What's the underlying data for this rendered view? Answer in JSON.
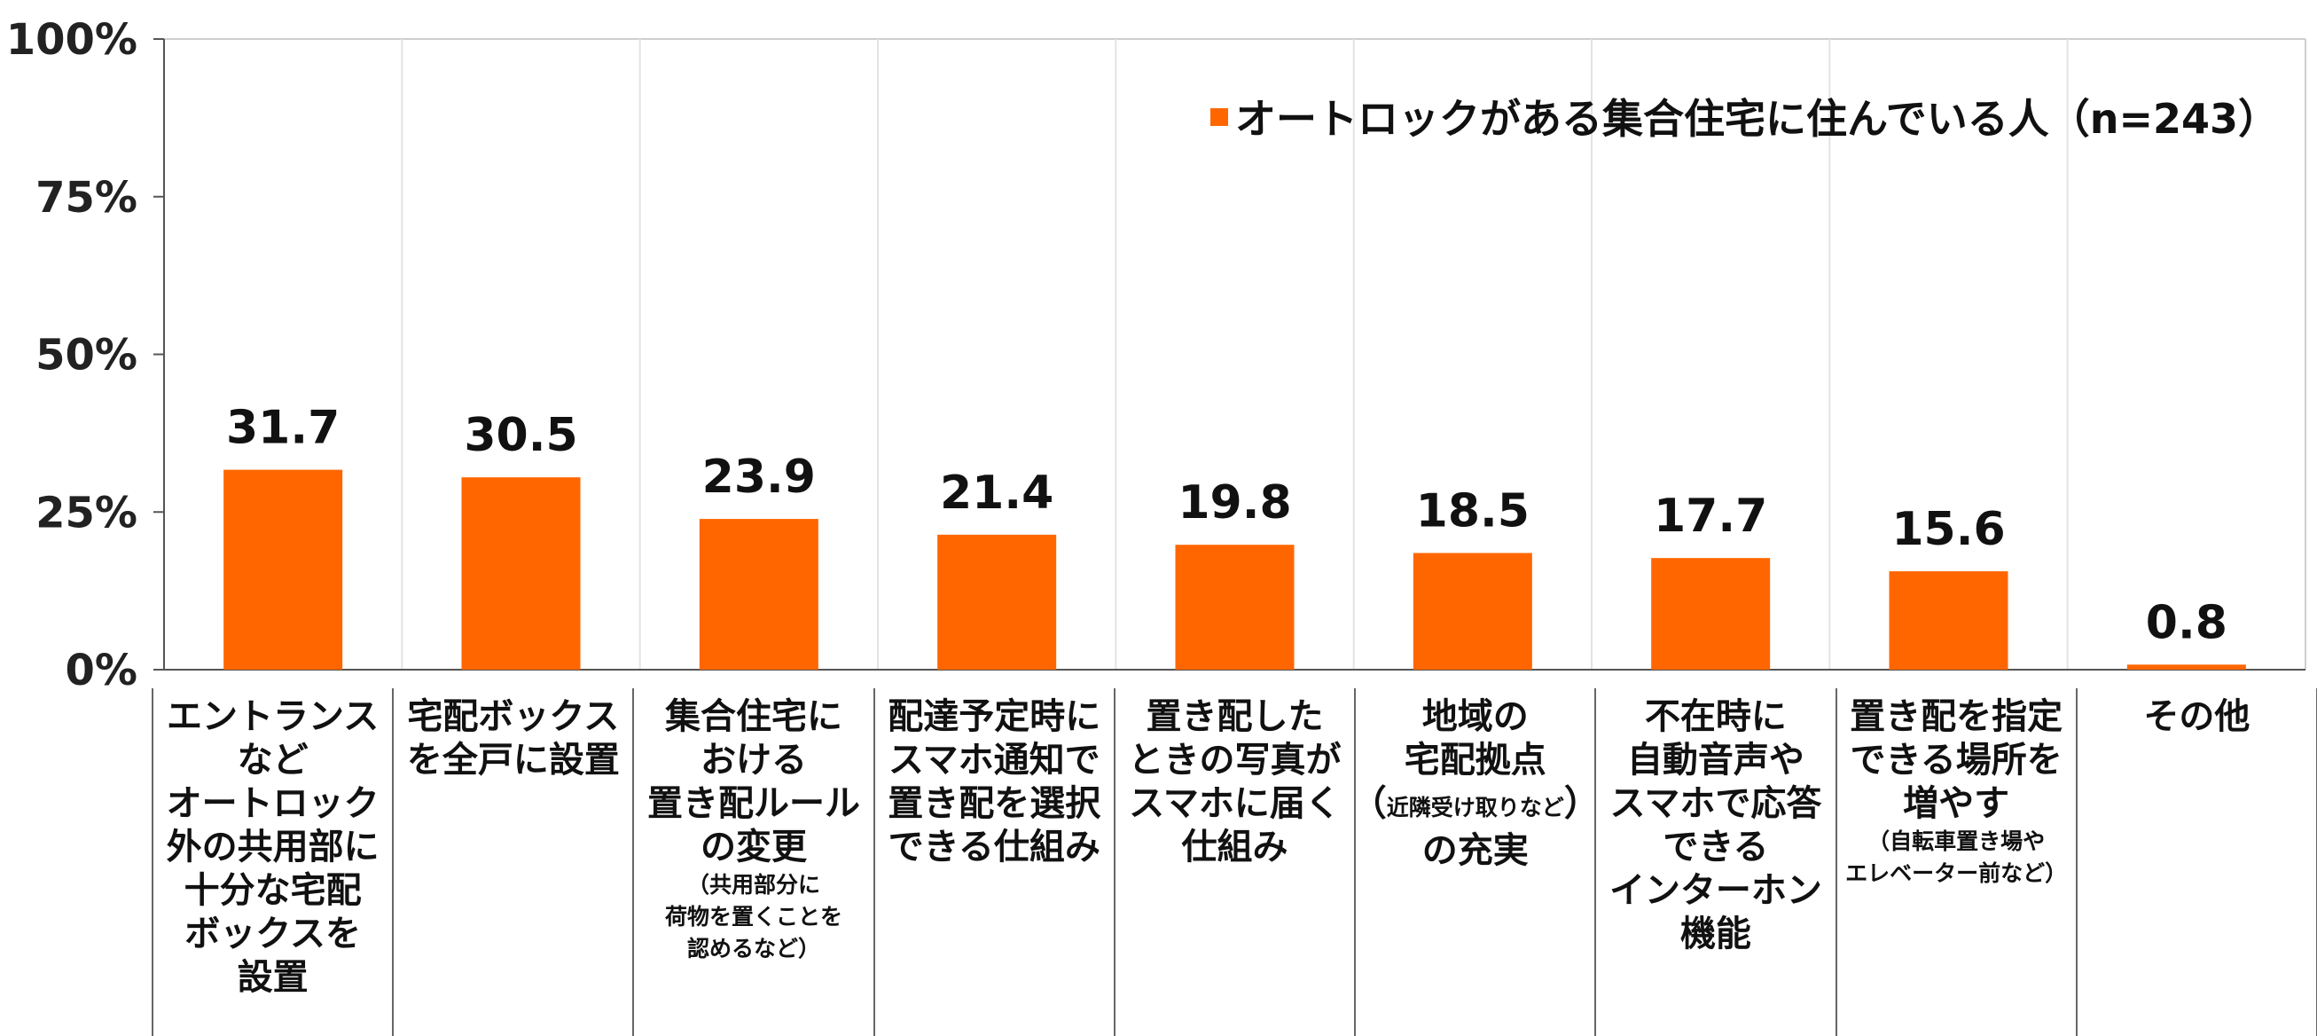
{
  "chart_data": {
    "type": "bar",
    "ylim": [
      0,
      100
    ],
    "yticks": [
      "0%",
      "25%",
      "50%",
      "75%",
      "100%"
    ],
    "ytick_values": [
      0,
      25,
      50,
      75,
      100
    ],
    "grid": "vertical category separators",
    "legend_position": "top-right",
    "bar_color": "#FF6600",
    "series": [
      {
        "name": "オートロックがある集合住宅に住んでいる人（n=243）",
        "values": [
          31.7,
          30.5,
          23.9,
          21.4,
          19.8,
          18.5,
          17.7,
          15.6,
          0.8
        ]
      }
    ],
    "value_labels": [
      "31.7",
      "30.5",
      "23.9",
      "21.4",
      "19.8",
      "18.5",
      "17.7",
      "15.6",
      "0.8"
    ],
    "categories": [
      [
        {
          "t": "エントランス"
        },
        {
          "t": "など"
        },
        {
          "t": "オートロック"
        },
        {
          "t": "外の共用部に"
        },
        {
          "t": "十分な宅配"
        },
        {
          "t": "ボックスを"
        },
        {
          "t": "設置"
        }
      ],
      [
        {
          "t": "宅配ボックス"
        },
        {
          "t": "を全戸に設置"
        }
      ],
      [
        {
          "t": "集合住宅に"
        },
        {
          "t": "おける"
        },
        {
          "t": "置き配ルール"
        },
        {
          "t": "の変更"
        },
        {
          "t": "（共用部分に",
          "s": true
        },
        {
          "t": "荷物を置くことを",
          "s": true
        },
        {
          "t": "認めるなど）",
          "s": true
        }
      ],
      [
        {
          "t": "配達予定時に"
        },
        {
          "t": "スマホ通知で"
        },
        {
          "t": "置き配を選択"
        },
        {
          "t": "できる仕組み"
        }
      ],
      [
        {
          "t": "置き配した"
        },
        {
          "t": "ときの写真が"
        },
        {
          "t": "スマホに届く"
        },
        {
          "t": "仕組み"
        }
      ],
      [
        {
          "t": "地域の"
        },
        {
          "t": "宅配拠点"
        },
        {
          "p": "（",
          "s": "近隣受け取りなど",
          "q": "）"
        },
        {
          "t": "の充実"
        }
      ],
      [
        {
          "t": "不在時に"
        },
        {
          "t": "自動音声や"
        },
        {
          "t": "スマホで応答"
        },
        {
          "t": "できる"
        },
        {
          "t": "インターホン"
        },
        {
          "t": "機能"
        }
      ],
      [
        {
          "t": "置き配を指定"
        },
        {
          "t": "できる場所を"
        },
        {
          "t": "増やす"
        },
        {
          "t": "（自転車置き場や",
          "s": true
        },
        {
          "t": "エレベーター前など）",
          "s": true
        }
      ],
      [
        {
          "t": "その他"
        }
      ]
    ]
  }
}
